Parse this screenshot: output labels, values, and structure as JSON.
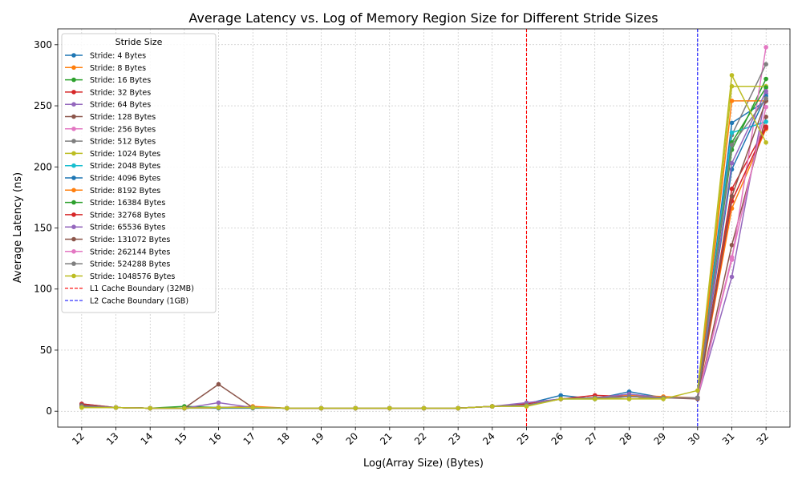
{
  "chart_data": {
    "type": "line",
    "title": "Average Latency vs. Log of Memory Region Size for Different Stride Sizes",
    "xlabel": "Log(Array Size) (Bytes)",
    "ylabel": "Average Latency (ns)",
    "x": [
      12,
      13,
      14,
      15,
      16,
      17,
      18,
      19,
      20,
      21,
      22,
      23,
      24,
      25,
      26,
      27,
      28,
      29,
      30,
      31,
      32
    ],
    "xlim": [
      11.3,
      32.7
    ],
    "ylim": [
      -13,
      313
    ],
    "yticks": [
      0,
      50,
      100,
      150,
      200,
      250,
      300
    ],
    "grid": true,
    "legend": {
      "title": "Stride Size",
      "placement": "top-left"
    },
    "colors": [
      "#1f77b4",
      "#ff7f0e",
      "#2ca02c",
      "#d62728",
      "#9467bd",
      "#8c564b",
      "#e377c2",
      "#7f7f7f",
      "#bcbd22",
      "#17becf"
    ],
    "series": [
      {
        "name": "Stride: 4 Bytes",
        "values": [
          6,
          3,
          2.5,
          2.5,
          2.5,
          2.5,
          2.5,
          2.5,
          2.5,
          2.5,
          2.5,
          2.5,
          4,
          6,
          13,
          10,
          16,
          11,
          11,
          236,
          254
        ]
      },
      {
        "name": "Stride: 8 Bytes",
        "values": [
          4,
          3,
          2.5,
          2.5,
          3,
          4,
          2.5,
          2.5,
          2.5,
          2.5,
          2.5,
          2.5,
          4,
          6,
          10,
          11,
          13,
          12,
          11,
          166,
          231
        ]
      },
      {
        "name": "Stride: 16 Bytes",
        "values": [
          4,
          3,
          2.5,
          4,
          3,
          3,
          2.5,
          2.5,
          2.5,
          2.5,
          2.5,
          2.5,
          4,
          5,
          10,
          10,
          12,
          11,
          11,
          214,
          272
        ]
      },
      {
        "name": "Stride: 32 Bytes",
        "values": [
          6,
          3,
          2.5,
          2.5,
          3,
          3,
          2.5,
          2.5,
          2.5,
          2.5,
          2.5,
          2.5,
          4,
          6,
          10,
          13,
          12,
          11,
          11,
          182,
          233
        ]
      },
      {
        "name": "Stride: 64 Bytes",
        "values": [
          5,
          3,
          2.5,
          2.5,
          7,
          3,
          2.5,
          2.5,
          2.5,
          2.5,
          2.5,
          2.5,
          4,
          7,
          10,
          11,
          14,
          11,
          11,
          110,
          260
        ]
      },
      {
        "name": "Stride: 128 Bytes",
        "values": [
          5,
          3,
          2.5,
          2.5,
          22,
          3,
          2.5,
          2.5,
          2.5,
          2.5,
          2.5,
          2.5,
          4,
          5,
          10,
          11,
          12,
          11,
          10,
          136,
          241
        ]
      },
      {
        "name": "Stride: 256 Bytes",
        "values": [
          4,
          3,
          2.5,
          2.5,
          3,
          3,
          2.5,
          2.5,
          2.5,
          2.5,
          2.5,
          2.5,
          4,
          5,
          10,
          11,
          12,
          11,
          11,
          124,
          298
        ]
      },
      {
        "name": "Stride: 512 Bytes",
        "values": [
          4,
          3,
          2.5,
          2.5,
          3,
          3,
          2.5,
          2.5,
          2.5,
          2.5,
          2.5,
          2.5,
          4,
          5,
          10,
          11,
          12,
          11,
          11,
          226,
          284
        ]
      },
      {
        "name": "Stride: 1024 Bytes",
        "values": [
          3,
          3,
          2.5,
          2.5,
          3,
          3,
          2.5,
          2.5,
          2.5,
          2.5,
          2.5,
          2.5,
          4,
          5,
          10,
          11,
          10,
          11,
          11,
          266,
          266
        ]
      },
      {
        "name": "Stride: 2048 Bytes",
        "values": [
          4,
          3,
          2.5,
          2.5,
          3,
          3,
          2.5,
          2.5,
          2.5,
          2.5,
          2.5,
          2.5,
          4,
          5,
          10,
          11,
          12,
          11,
          11,
          228,
          237
        ]
      },
      {
        "name": "Stride: 4096 Bytes",
        "values": [
          4,
          3,
          2.5,
          2.5,
          3,
          3,
          2.5,
          2.5,
          2.5,
          2.5,
          2.5,
          2.5,
          4,
          5,
          10,
          11,
          12,
          11,
          11,
          198,
          258
        ]
      },
      {
        "name": "Stride: 8192 Bytes",
        "values": [
          4,
          3,
          2.5,
          2.5,
          3,
          3,
          2.5,
          2.5,
          2.5,
          2.5,
          2.5,
          2.5,
          4,
          5,
          10,
          11,
          12,
          11,
          11,
          254,
          254
        ]
      },
      {
        "name": "Stride: 16384 Bytes",
        "values": [
          4,
          3,
          2.5,
          2.5,
          3,
          3,
          2.5,
          2.5,
          2.5,
          2.5,
          2.5,
          2.5,
          4,
          5,
          10,
          11,
          12,
          11,
          11,
          220,
          265
        ]
      },
      {
        "name": "Stride: 32768 Bytes",
        "values": [
          4,
          3,
          2.5,
          2.5,
          3,
          3,
          2.5,
          2.5,
          2.5,
          2.5,
          2.5,
          2.5,
          4,
          5,
          10,
          11,
          12,
          11,
          11,
          172,
          232
        ]
      },
      {
        "name": "Stride: 65536 Bytes",
        "values": [
          4,
          3,
          2.5,
          2.5,
          3,
          3,
          2.5,
          2.5,
          2.5,
          2.5,
          2.5,
          2.5,
          4,
          5,
          10,
          11,
          12,
          11,
          11,
          203,
          262
        ]
      },
      {
        "name": "Stride: 131072 Bytes",
        "values": [
          4,
          3,
          2.5,
          2.5,
          3,
          3,
          2.5,
          2.5,
          2.5,
          2.5,
          2.5,
          2.5,
          4,
          5,
          10,
          11,
          12,
          11,
          11,
          176,
          254
        ]
      },
      {
        "name": "Stride: 262144 Bytes",
        "values": [
          4,
          3,
          2.5,
          2.5,
          3,
          3,
          2.5,
          2.5,
          2.5,
          2.5,
          2.5,
          2.5,
          4,
          5,
          10,
          11,
          12,
          11,
          11,
          126,
          249
        ]
      },
      {
        "name": "Stride: 524288 Bytes",
        "values": [
          4,
          3,
          2.5,
          2.5,
          3,
          3,
          2.5,
          2.5,
          2.5,
          2.5,
          2.5,
          2.5,
          4,
          5,
          10,
          11,
          12,
          11,
          11,
          218,
          256
        ]
      },
      {
        "name": "Stride: 1048576 Bytes",
        "values": [
          3,
          3,
          2.5,
          2.5,
          3,
          3,
          2.5,
          2.5,
          2.5,
          2.5,
          2.5,
          2.5,
          4,
          4,
          10,
          10,
          10,
          10,
          17,
          275,
          220
        ]
      }
    ],
    "vlines": [
      {
        "x": 25,
        "label": "L1 Cache Boundary (32MB)",
        "color": "#ff0000"
      },
      {
        "x": 30,
        "label": "L2 Cache Boundary (1GB)",
        "color": "#0000ff"
      }
    ]
  }
}
